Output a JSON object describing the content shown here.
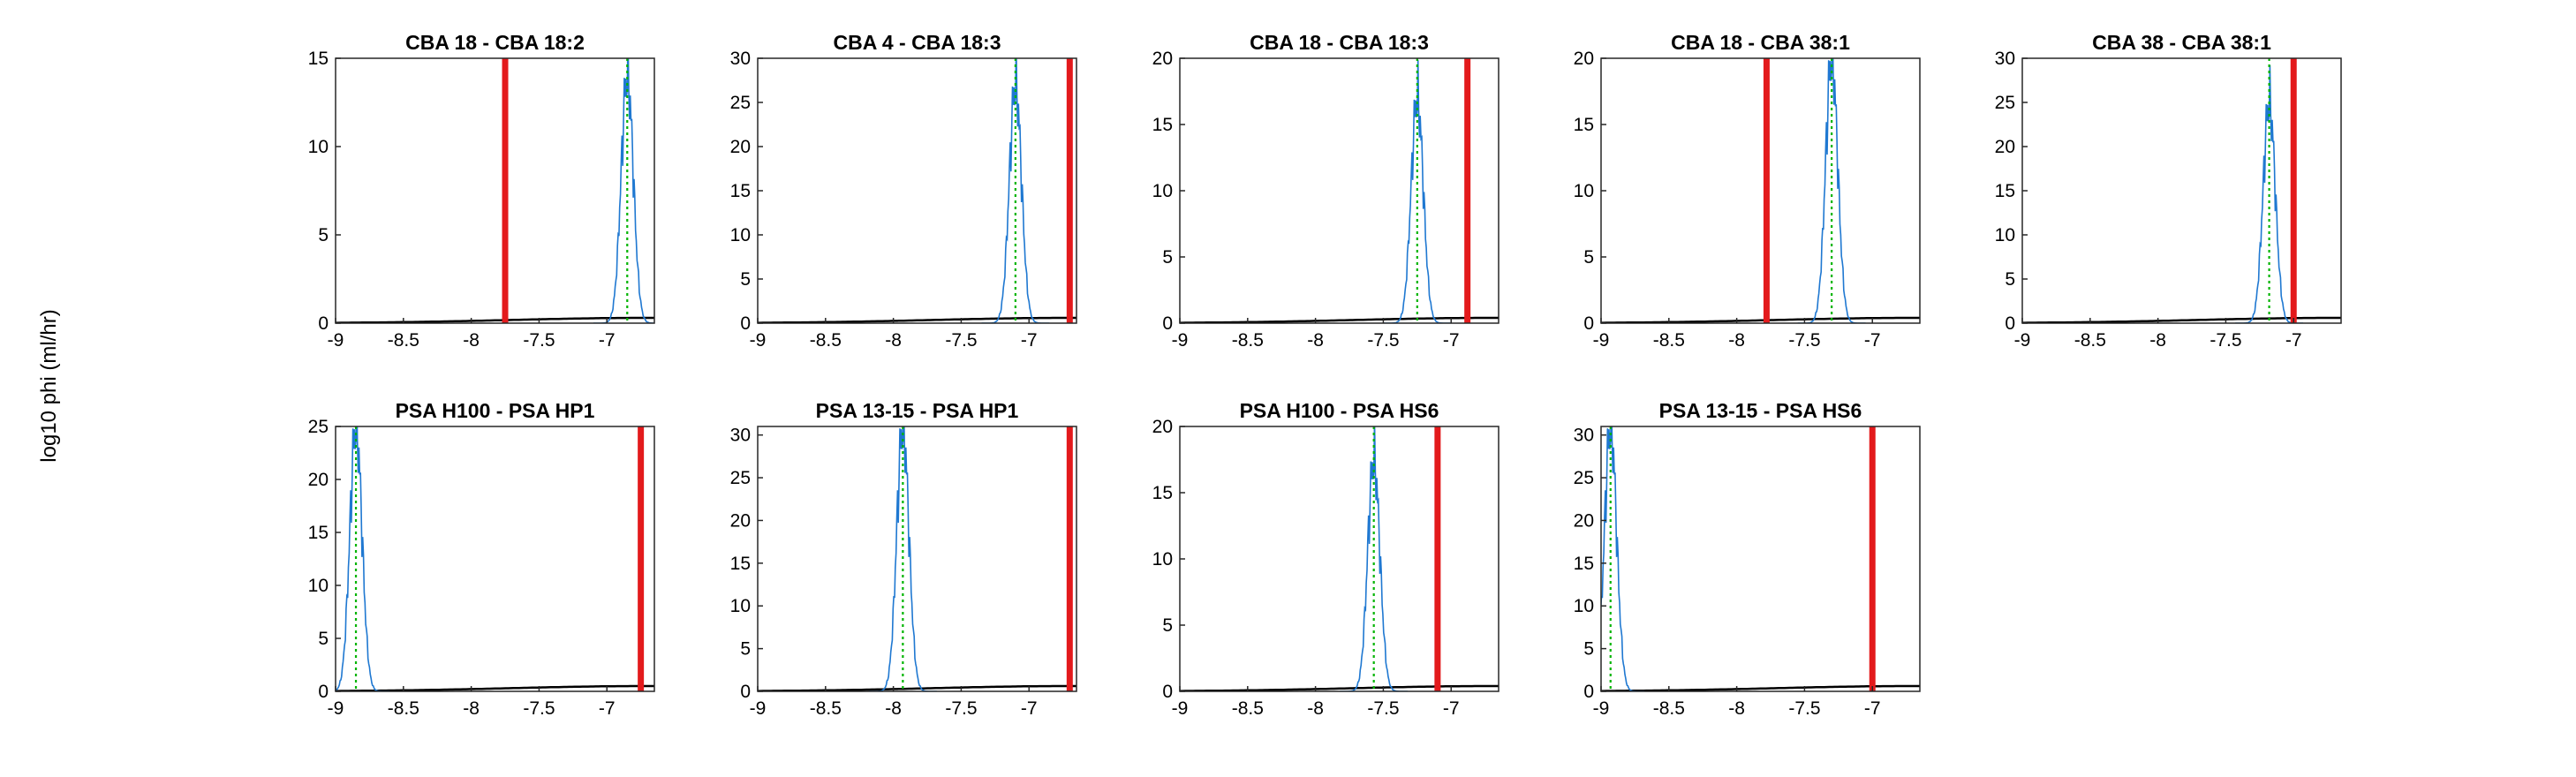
{
  "figure": {
    "ylabel": "log10 phi (ml/hr)"
  },
  "colors": {
    "observed": "#e31a1c",
    "histogram": "#1f78d1",
    "mode": "#00b400",
    "density": "#000000",
    "axes": "#262626"
  },
  "chart_data": [
    {
      "type": "line",
      "title": "CBA 18 - CBA 18:2",
      "xlim": [
        -9,
        -6.65
      ],
      "ylim": [
        0,
        15
      ],
      "xticks": [
        "-9",
        "-8.5",
        "-8",
        "-7.5",
        "-7"
      ],
      "yticks": [
        "0",
        "5",
        "10",
        "15"
      ],
      "observed_line_x": -7.75,
      "mode_x": -6.85,
      "peak_y": 14.0
    },
    {
      "type": "line",
      "title": "CBA 4 - CBA 18:3",
      "xlim": [
        -9,
        -6.65
      ],
      "ylim": [
        0,
        30
      ],
      "xticks": [
        "-9",
        "-8.5",
        "-8",
        "-7.5",
        "-7"
      ],
      "yticks": [
        "0",
        "5",
        "10",
        "15",
        "20",
        "25",
        "30"
      ],
      "observed_line_x": -6.7,
      "mode_x": -7.1,
      "peak_y": 27
    },
    {
      "type": "line",
      "title": "CBA 18 - CBA 18:3",
      "xlim": [
        -9,
        -6.65
      ],
      "ylim": [
        0,
        20
      ],
      "xticks": [
        "-9",
        "-8.5",
        "-8",
        "-7.5",
        "-7"
      ],
      "yticks": [
        "0",
        "5",
        "10",
        "15",
        "20"
      ],
      "observed_line_x": -6.88,
      "mode_x": -7.25,
      "peak_y": 17
    },
    {
      "type": "line",
      "title": "CBA 18 - CBA 38:1",
      "xlim": [
        -9,
        -6.65
      ],
      "ylim": [
        0,
        20
      ],
      "xticks": [
        "-9",
        "-8.5",
        "-8",
        "-7.5",
        "-7"
      ],
      "yticks": [
        "0",
        "5",
        "10",
        "15",
        "20"
      ],
      "observed_line_x": -7.78,
      "mode_x": -7.3,
      "peak_y": 20
    },
    {
      "type": "line",
      "title": "CBA 38 - CBA 38:1",
      "xlim": [
        -9,
        -6.65
      ],
      "ylim": [
        0,
        30
      ],
      "xticks": [
        "-9",
        "-8.5",
        "-8",
        "-7.5",
        "-7"
      ],
      "yticks": [
        "0",
        "5",
        "10",
        "15",
        "20",
        "25",
        "30"
      ],
      "observed_line_x": -7.0,
      "mode_x": -7.18,
      "peak_y": 25
    },
    {
      "type": "line",
      "title": "PSA H100 - PSA HP1",
      "xlim": [
        -9,
        -6.65
      ],
      "ylim": [
        0,
        25
      ],
      "xticks": [
        "-9",
        "-8.5",
        "-8",
        "-7.5",
        "-7"
      ],
      "yticks": [
        "0",
        "5",
        "10",
        "15",
        "20",
        "25"
      ],
      "observed_line_x": -6.75,
      "mode_x": -8.85,
      "peak_y": 25
    },
    {
      "type": "line",
      "title": "PSA 13-15 - PSA HP1",
      "xlim": [
        -9,
        -6.65
      ],
      "ylim": [
        0,
        31
      ],
      "xticks": [
        "-9",
        "-8.5",
        "-8",
        "-7.5",
        "-7"
      ],
      "yticks": [
        "0",
        "5",
        "10",
        "15",
        "20",
        "25",
        "30"
      ],
      "observed_line_x": -6.7,
      "mode_x": -7.93,
      "peak_y": 31
    },
    {
      "type": "line",
      "title": "PSA H100 - PSA HS6",
      "xlim": [
        -9,
        -6.65
      ],
      "ylim": [
        0,
        20
      ],
      "xticks": [
        "-9",
        "-8.5",
        "-8",
        "-7.5",
        "-7"
      ],
      "yticks": [
        "0",
        "5",
        "10",
        "15",
        "20"
      ],
      "observed_line_x": -7.1,
      "mode_x": -7.57,
      "peak_y": 17.5
    },
    {
      "type": "line",
      "title": "PSA 13-15 - PSA HS6",
      "xlim": [
        -9,
        -6.65
      ],
      "ylim": [
        0,
        31
      ],
      "xticks": [
        "-9",
        "-8.5",
        "-8",
        "-7.5",
        "-7"
      ],
      "yticks": [
        "0",
        "5",
        "10",
        "15",
        "20",
        "25",
        "30"
      ],
      "observed_line_x": -7.0,
      "mode_x": -8.93,
      "peak_y": 31
    }
  ]
}
